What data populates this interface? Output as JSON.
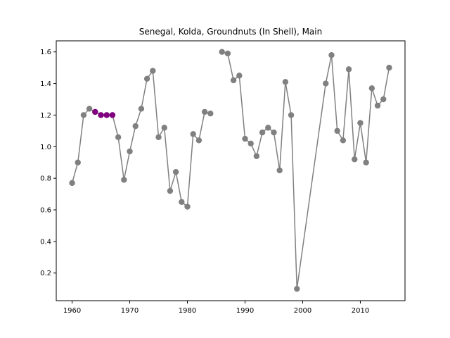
{
  "chart_data": {
    "type": "line",
    "title": "Senegal, Kolda, Groundnuts (In Shell), Main",
    "xlabel": "",
    "ylabel": "",
    "xlim": [
      1957.25,
      2017.75
    ],
    "ylim": [
      0.025,
      1.67
    ],
    "x_ticks": [
      1960,
      1970,
      1980,
      1990,
      2000,
      2010
    ],
    "y_ticks": [
      0.2,
      0.4,
      0.6,
      0.8,
      1.0,
      1.2,
      1.4,
      1.6
    ],
    "grid": false,
    "colors": {
      "line": "#808080",
      "marker": "#808080",
      "highlight": "#800080"
    },
    "segments": [
      {
        "x": [
          1960,
          1961,
          1962,
          1963,
          1964,
          1965,
          1966,
          1967,
          1968,
          1969,
          1970,
          1971,
          1972,
          1973,
          1974,
          1975,
          1976,
          1977,
          1978,
          1979,
          1980,
          1981,
          1982,
          1983,
          1984
        ],
        "y": [
          0.77,
          0.9,
          1.2,
          1.24,
          1.22,
          1.2,
          1.2,
          1.2,
          1.06,
          0.79,
          0.97,
          1.13,
          1.24,
          1.43,
          1.48,
          1.06,
          1.12,
          0.72,
          0.84,
          0.65,
          0.62,
          1.08,
          1.04,
          1.22,
          1.21
        ]
      },
      {
        "x": [
          1986,
          1987,
          1988,
          1989,
          1990,
          1991,
          1992,
          1993,
          1994,
          1995,
          1996,
          1997,
          1998,
          1999,
          2004,
          2005,
          2006,
          2007,
          2008,
          2009,
          2010,
          2011,
          2012,
          2013,
          2014,
          2015
        ],
        "y": [
          1.6,
          1.59,
          1.42,
          1.45,
          1.05,
          1.02,
          0.94,
          1.09,
          1.12,
          1.09,
          0.85,
          1.41,
          1.2,
          0.1,
          1.4,
          1.58,
          1.1,
          1.04,
          1.49,
          0.92,
          1.15,
          0.9,
          1.37,
          1.26,
          1.3,
          1.5
        ]
      }
    ],
    "highlight": {
      "x": [
        1964,
        1965,
        1966,
        1967
      ],
      "y": [
        1.22,
        1.2,
        1.2,
        1.2
      ]
    }
  }
}
